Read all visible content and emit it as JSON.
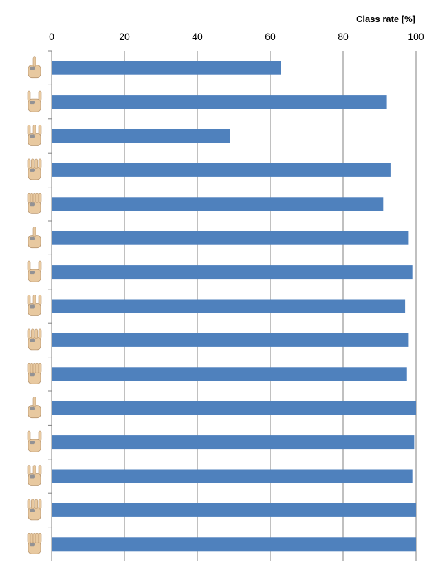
{
  "chart_data": {
    "type": "bar",
    "orientation": "horizontal",
    "xlabel": "Class rate [%]",
    "xlabel_position": "top-right",
    "xlim": [
      0,
      100
    ],
    "xticks": [
      "0",
      "20",
      "40",
      "60",
      "80",
      "100"
    ],
    "grid": true,
    "category_markers": "hand-gesture-icons",
    "categories": [
      "",
      "",
      "",
      "",
      "",
      "",
      "",
      "",
      "",
      "",
      "",
      "",
      "",
      "",
      ""
    ],
    "series": [
      {
        "values": [
          63,
          92,
          49,
          93,
          91,
          98,
          99,
          97,
          98,
          97.5,
          100,
          99.5,
          99,
          100,
          100
        ]
      }
    ],
    "colors": {
      "bar": "#4F81BD",
      "grid": "#808080",
      "axis": "#808080"
    }
  }
}
